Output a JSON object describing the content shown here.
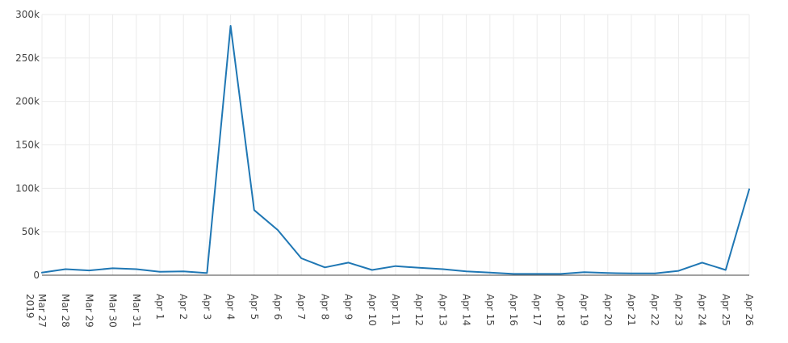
{
  "chart_data": {
    "type": "line",
    "title": "",
    "xlabel": "",
    "ylabel": "",
    "grid": true,
    "ylim": [
      0,
      300000
    ],
    "y_ticks": [
      {
        "value": 0,
        "label": "0"
      },
      {
        "value": 50000,
        "label": "50k"
      },
      {
        "value": 100000,
        "label": "100k"
      },
      {
        "value": 150000,
        "label": "150k"
      },
      {
        "value": 200000,
        "label": "200k"
      },
      {
        "value": 250000,
        "label": "250k"
      },
      {
        "value": 300000,
        "label": "300k"
      }
    ],
    "x": [
      "2019-03-27",
      "2019-03-28",
      "2019-03-29",
      "2019-03-30",
      "2019-03-31",
      "2019-04-01",
      "2019-04-02",
      "2019-04-03",
      "2019-04-04",
      "2019-04-05",
      "2019-04-06",
      "2019-04-07",
      "2019-04-08",
      "2019-04-09",
      "2019-04-10",
      "2019-04-11",
      "2019-04-12",
      "2019-04-13",
      "2019-04-14",
      "2019-04-15",
      "2019-04-16",
      "2019-04-17",
      "2019-04-18",
      "2019-04-19",
      "2019-04-20",
      "2019-04-21",
      "2019-04-22",
      "2019-04-23",
      "2019-04-24",
      "2019-04-25",
      "2019-04-26"
    ],
    "x_tick_labels": [
      "Mar 27",
      "Mar 28",
      "Mar 29",
      "Mar 30",
      "Mar 31",
      "Apr 1",
      "Apr 2",
      "Apr 3",
      "Apr 4",
      "Apr 5",
      "Apr 6",
      "Apr 7",
      "Apr 8",
      "Apr 9",
      "Apr 10",
      "Apr 11",
      "Apr 12",
      "Apr 13",
      "Apr 14",
      "Apr 15",
      "Apr 16",
      "Apr 17",
      "Apr 18",
      "Apr 19",
      "Apr 20",
      "Apr 21",
      "Apr 22",
      "Apr 23",
      "Apr 24",
      "Apr 25",
      "Apr 26"
    ],
    "x_year_label": "2019",
    "series": [
      {
        "color": "#1f77b4",
        "values": [
          3000,
          7000,
          5500,
          8000,
          7000,
          4000,
          4500,
          2500,
          287000,
          75000,
          52000,
          19500,
          9000,
          14500,
          6000,
          10500,
          8500,
          7000,
          4500,
          3000,
          1500,
          1500,
          1500,
          3500,
          2500,
          2000,
          2000,
          5000,
          14500,
          6000,
          99000
        ]
      }
    ]
  }
}
